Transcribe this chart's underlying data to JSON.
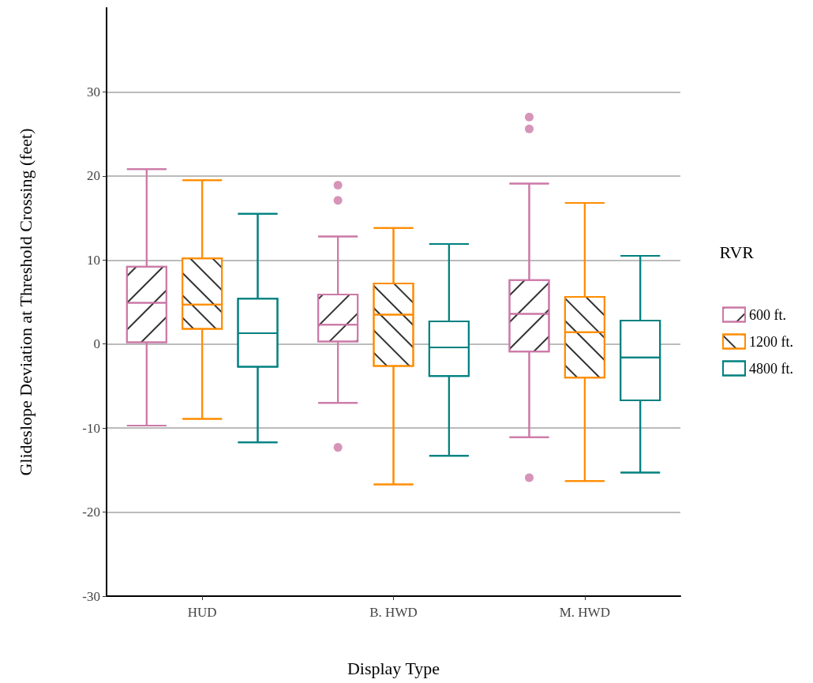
{
  "chart_data": {
    "type": "box",
    "xlabel": "Display Type",
    "ylabel": "Glideslope Deviation at Threshold Crossing (feet)",
    "legend_title": "RVR",
    "legend": "right",
    "grid": "y",
    "categories": [
      "HUD",
      "B. HWD",
      "M. HWD"
    ],
    "ylim": [
      -30,
      40
    ],
    "yticks": [
      -30,
      -20,
      -10,
      0,
      10,
      20,
      30
    ],
    "series": [
      {
        "name": "600 ft.",
        "color": "#cc79a7",
        "boxes": [
          {
            "low": -9.7,
            "q1": 0.2,
            "median": 4.9,
            "q3": 9.2,
            "high": 20.8
          },
          {
            "low": -7.0,
            "q1": 0.3,
            "median": 2.3,
            "q3": 5.9,
            "high": 12.8,
            "outliers": [
              18.9,
              17.1,
              -12.3
            ]
          },
          {
            "low": -11.1,
            "q1": -0.9,
            "median": 3.6,
            "q3": 7.6,
            "high": 19.1,
            "outliers": [
              27.0,
              25.6,
              -15.9
            ]
          }
        ]
      },
      {
        "name": "1200 ft.",
        "color": "#ff8c00",
        "boxes": [
          {
            "low": -8.9,
            "q1": 1.8,
            "median": 4.7,
            "q3": 10.2,
            "high": 19.5
          },
          {
            "low": -16.7,
            "q1": -2.6,
            "median": 3.5,
            "q3": 7.2,
            "high": 13.8
          },
          {
            "low": -16.3,
            "q1": -4.0,
            "median": 1.4,
            "q3": 5.6,
            "high": 16.8
          }
        ]
      },
      {
        "name": "4800 ft.",
        "color": "#008080",
        "boxes": [
          {
            "low": -11.7,
            "q1": -2.7,
            "median": 1.3,
            "q3": 5.4,
            "high": 15.5
          },
          {
            "low": -13.3,
            "q1": -3.8,
            "median": -0.4,
            "q3": 2.7,
            "high": 11.9
          },
          {
            "low": -15.3,
            "q1": -6.7,
            "median": -1.6,
            "q3": 2.8,
            "high": 10.5
          }
        ]
      }
    ]
  }
}
